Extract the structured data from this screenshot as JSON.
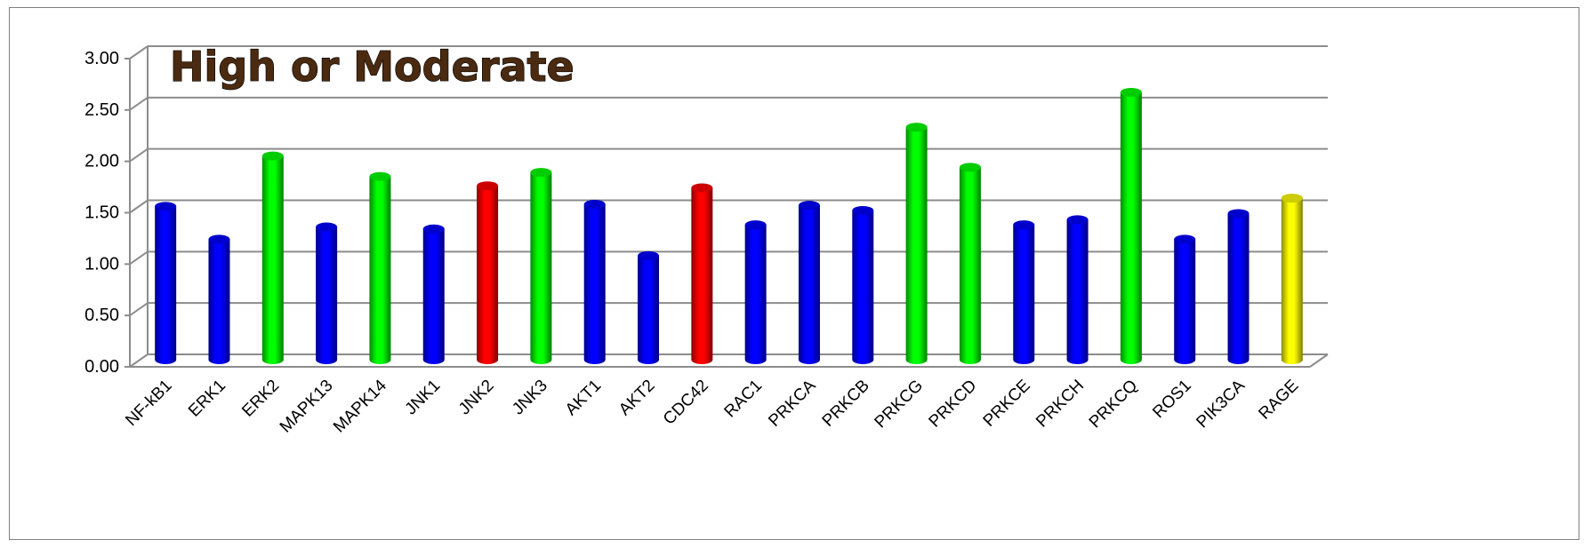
{
  "chart_data": {
    "type": "bar",
    "title": "High or Moderate",
    "xlabel": "",
    "ylabel": "",
    "ylim": [
      0,
      3
    ],
    "yticks": [
      "0.00",
      "0.50",
      "1.00",
      "1.50",
      "2.00",
      "2.50",
      "3.00"
    ],
    "grid": true,
    "legend": "none",
    "categories": [
      "NF-kB1",
      "ERK1",
      "ERK2",
      "MAPK13",
      "MAPK14",
      "JNK1",
      "JNK2",
      "JNK3",
      "AKT1",
      "AKT2",
      "CDC42",
      "RAC1",
      "PRKCA",
      "PRKCB",
      "PRKCG",
      "PRKCD",
      "PRKCE",
      "PRKCH",
      "PRKCQ",
      "ROS1",
      "PIK3CA",
      "RAGE"
    ],
    "values": [
      1.51,
      1.19,
      2.0,
      1.31,
      1.8,
      1.29,
      1.71,
      1.84,
      1.53,
      1.03,
      1.69,
      1.33,
      1.52,
      1.47,
      2.28,
      1.89,
      1.33,
      1.38,
      2.62,
      1.19,
      1.44,
      1.59
    ],
    "bar_colors": [
      "#0000ff",
      "#0000ff",
      "#00ff00",
      "#0000ff",
      "#00ff00",
      "#0000ff",
      "#ff0000",
      "#00ff00",
      "#0000ff",
      "#0000ff",
      "#ff0000",
      "#0000ff",
      "#0000ff",
      "#0000ff",
      "#00ff00",
      "#00ff00",
      "#0000ff",
      "#0000ff",
      "#00ff00",
      "#0000ff",
      "#0000ff",
      "#ffff00"
    ]
  }
}
